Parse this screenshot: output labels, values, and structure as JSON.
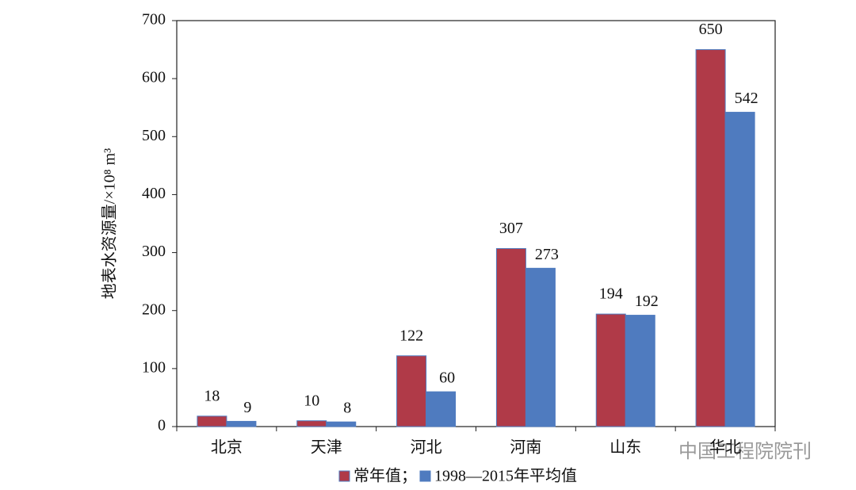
{
  "chart_data": {
    "type": "bar",
    "y_label": "地表水资源量/×10⁸ m³",
    "categories": [
      "北京",
      "天津",
      "河北",
      "河南",
      "山东",
      "华北"
    ],
    "series": [
      {
        "name": "常年值；",
        "color": "#b03a48",
        "values": [
          18,
          10,
          122,
          307,
          194,
          650
        ]
      },
      {
        "name": "1998—2015年平均值",
        "color": "#4f7bbf",
        "values": [
          9,
          8,
          60,
          273,
          192,
          542
        ]
      }
    ],
    "ylim": [
      0,
      700
    ],
    "yticks": [
      0,
      100,
      200,
      300,
      400,
      500,
      600,
      700
    ],
    "watermark": "中国工程院院刊"
  }
}
